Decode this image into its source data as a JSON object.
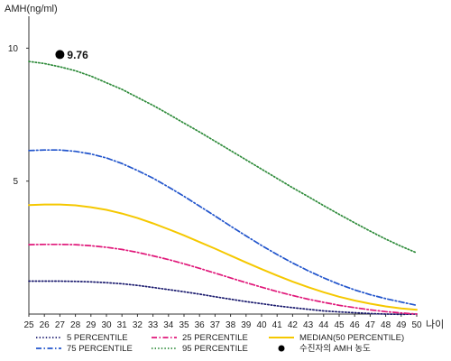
{
  "chart_data": {
    "type": "line",
    "ylabel": "AMH(ng/ml)",
    "xlabel": "나이",
    "x": [
      25,
      26,
      27,
      28,
      29,
      30,
      31,
      32,
      33,
      34,
      35,
      36,
      37,
      38,
      39,
      40,
      41,
      42,
      43,
      44,
      45,
      46,
      47,
      48,
      49,
      50
    ],
    "x_ticks": [
      "25",
      "26",
      "27",
      "28",
      "29",
      "30",
      "31",
      "32",
      "33",
      "34",
      "35",
      "36",
      "37",
      "38",
      "39",
      "40",
      "41",
      "42",
      "43",
      "44",
      "45",
      "46",
      "47",
      "48",
      "49",
      "50"
    ],
    "y_ticks": [
      "5",
      "10"
    ],
    "ylim": [
      0,
      11.2
    ],
    "xlim": [
      25,
      50
    ],
    "grid": false,
    "series": [
      {
        "name": "5 PERCENTILE",
        "color": "#1a1a6e",
        "style": "dotted",
        "values": [
          1.24,
          1.24,
          1.24,
          1.23,
          1.21,
          1.18,
          1.14,
          1.08,
          1.0,
          0.92,
          0.84,
          0.75,
          0.65,
          0.56,
          0.47,
          0.39,
          0.31,
          0.24,
          0.18,
          0.12,
          0.08,
          0.05,
          0.02,
          0.0,
          -0.01,
          0.0
        ]
      },
      {
        "name": "25 PERCENTILE",
        "color": "#e0187a",
        "style": "dashdot",
        "values": [
          2.61,
          2.62,
          2.62,
          2.61,
          2.57,
          2.51,
          2.43,
          2.32,
          2.19,
          2.05,
          1.89,
          1.72,
          1.54,
          1.36,
          1.18,
          1.01,
          0.85,
          0.7,
          0.56,
          0.44,
          0.33,
          0.24,
          0.16,
          0.09,
          0.04,
          0.0
        ]
      },
      {
        "name": "MEDIAN(50 PERCENTILE)",
        "color": "#f5c800",
        "style": "solid",
        "values": [
          4.1,
          4.12,
          4.12,
          4.09,
          4.02,
          3.92,
          3.78,
          3.61,
          3.41,
          3.19,
          2.96,
          2.71,
          2.46,
          2.2,
          1.94,
          1.69,
          1.45,
          1.22,
          1.01,
          0.82,
          0.65,
          0.51,
          0.39,
          0.29,
          0.21,
          0.16
        ]
      },
      {
        "name": "75 PERCENTILE",
        "color": "#2255cc",
        "style": "dashdot",
        "values": [
          6.15,
          6.17,
          6.17,
          6.12,
          6.02,
          5.87,
          5.66,
          5.4,
          5.11,
          4.78,
          4.43,
          4.06,
          3.69,
          3.31,
          2.94,
          2.58,
          2.24,
          1.92,
          1.63,
          1.36,
          1.12,
          0.91,
          0.73,
          0.58,
          0.45,
          0.33
        ]
      },
      {
        "name": "95 PERCENTILE",
        "color": "#2e8b3a",
        "style": "dotted",
        "values": [
          9.5,
          9.42,
          9.3,
          9.15,
          8.95,
          8.7,
          8.45,
          8.15,
          7.85,
          7.52,
          7.18,
          6.85,
          6.5,
          6.15,
          5.8,
          5.45,
          5.1,
          4.75,
          4.42,
          4.08,
          3.75,
          3.43,
          3.12,
          2.82,
          2.55,
          2.3
        ]
      }
    ],
    "marker": {
      "name": "수진자의 AMH 농도",
      "x": 27,
      "y": 9.76,
      "label": "9.76",
      "color": "#000000"
    },
    "legend": {
      "placement": "bottom",
      "rows": [
        [
          "5 PERCENTILE",
          "25 PERCENTILE",
          "MEDIAN(50 PERCENTILE)"
        ],
        [
          "75 PERCENTILE",
          "95 PERCENTILE",
          "수진자의 AMH 농도"
        ]
      ]
    }
  }
}
